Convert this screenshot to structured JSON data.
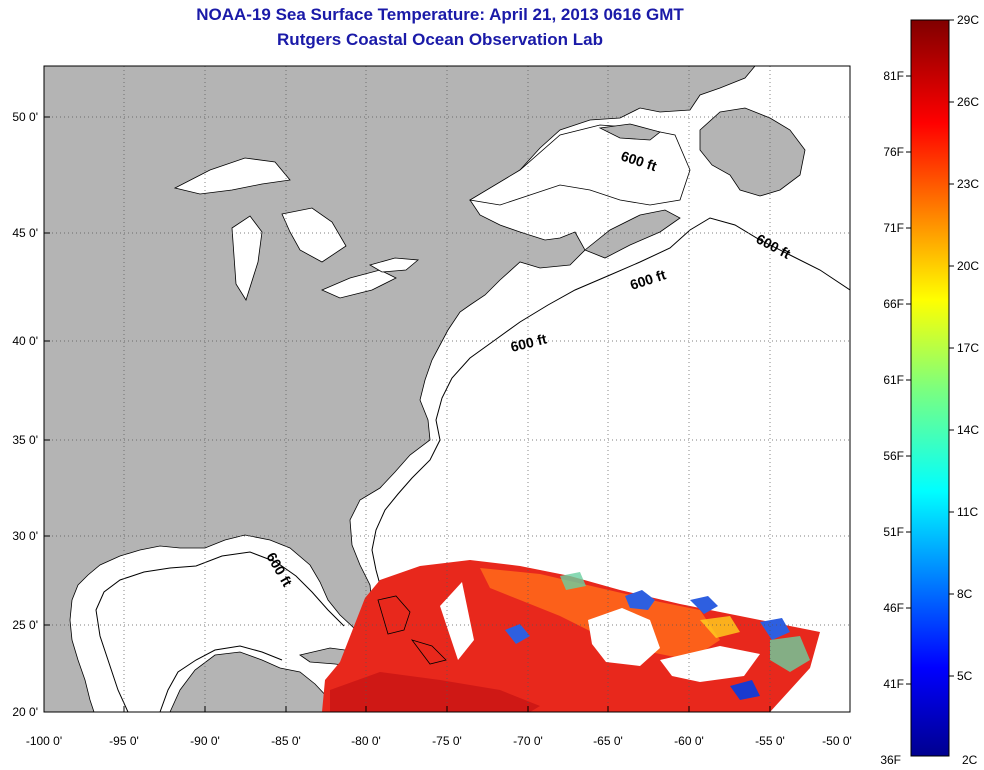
{
  "title": {
    "line1": "NOAA-19 Sea Surface Temperature:  April 21, 2013 0616 GMT",
    "line2": "Rutgers Coastal Ocean Observation Lab"
  },
  "map": {
    "lon_ticks": [
      "-100 0'",
      "-95 0'",
      "-90 0'",
      "-85 0'",
      "-80 0'",
      "-75 0'",
      "-70 0'",
      "-65 0'",
      "-60 0'",
      "-55 0'",
      "-50 0'"
    ],
    "lat_ticks": [
      "50 0'",
      "45 0'",
      "40 0'",
      "35 0'",
      "30 0'",
      "25 0'",
      "20 0'"
    ],
    "contour_label": "600 ft",
    "land_color": "#b4b4b4",
    "water_color": "#ffffff"
  },
  "colorbar": {
    "celsius": [
      "29C",
      "26C",
      "23C",
      "20C",
      "17C",
      "14C",
      "11C",
      "8C",
      "5C",
      "2C"
    ],
    "fahrenheit": [
      "81F",
      "76F",
      "71F",
      "66F",
      "61F",
      "56F",
      "51F",
      "46F",
      "41F",
      "36F"
    ]
  }
}
